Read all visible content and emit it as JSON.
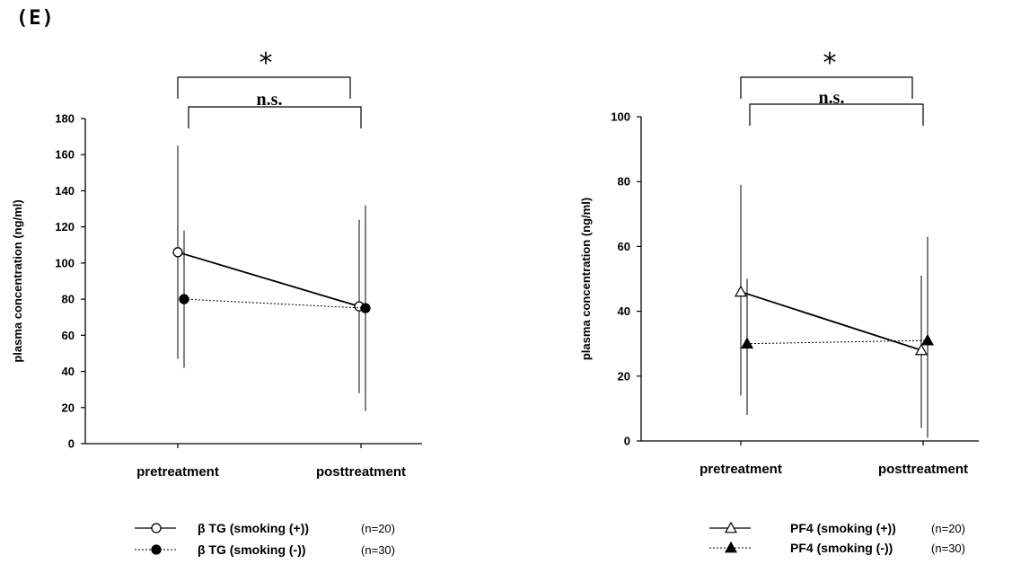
{
  "panel_label": "(E)",
  "chart_data": [
    {
      "type": "line",
      "categories": [
        "pretreatment",
        "posttreatment"
      ],
      "ylabel": "plasma concentration (ng/ml)",
      "ylim": [
        0,
        180
      ],
      "yticks": [
        0,
        20,
        40,
        60,
        80,
        100,
        120,
        140,
        160,
        180
      ],
      "series": [
        {
          "name": "β TG (smoking (+))",
          "n": "(n=20)",
          "marker": "open-circle",
          "line": "solid",
          "values": [
            106,
            76
          ],
          "err_low": [
            47,
            28
          ],
          "err_high": [
            165,
            124
          ]
        },
        {
          "name": "β TG (smoking (-))",
          "n": "(n=30)",
          "marker": "filled-circle",
          "line": "dotted",
          "values": [
            80,
            75
          ],
          "err_low": [
            42,
            18
          ],
          "err_high": [
            118,
            132
          ]
        }
      ],
      "annotations": [
        {
          "text": "*",
          "bracket": "outer"
        },
        {
          "text": "n.s.",
          "bracket": "inner"
        }
      ]
    },
    {
      "type": "line",
      "categories": [
        "pretreatment",
        "posttreatment"
      ],
      "ylabel": "plasma concentration (ng/ml)",
      "ylim": [
        0,
        100
      ],
      "yticks": [
        0,
        20,
        40,
        60,
        80,
        100
      ],
      "series": [
        {
          "name": "PF4 (smoking (+))",
          "n": "(n=20)",
          "marker": "open-triangle",
          "line": "solid",
          "values": [
            46,
            28
          ],
          "err_low": [
            14,
            4
          ],
          "err_high": [
            79,
            51
          ]
        },
        {
          "name": "PF4 (smoking (-))",
          "n": "(n=30)",
          "marker": "filled-triangle",
          "line": "dotted",
          "values": [
            30,
            31
          ],
          "err_low": [
            8,
            1
          ],
          "err_high": [
            50,
            63
          ]
        }
      ],
      "annotations": [
        {
          "text": "*",
          "bracket": "outer"
        },
        {
          "text": "n.s.",
          "bracket": "inner"
        }
      ]
    }
  ]
}
